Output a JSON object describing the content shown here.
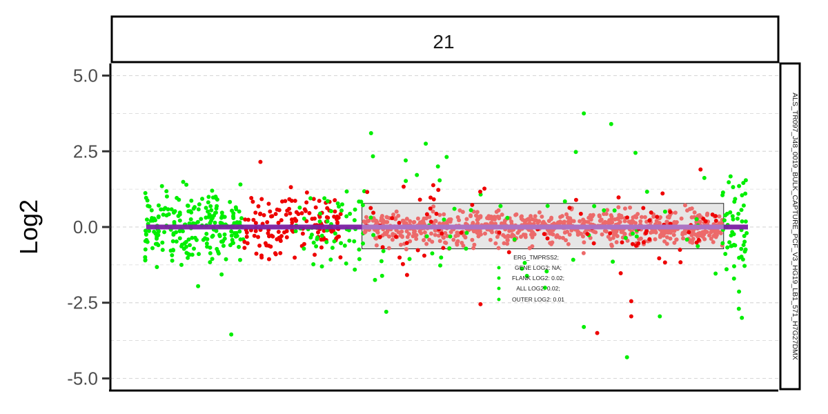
{
  "chart_data": {
    "type": "scatter",
    "title": "",
    "facet_label": "21",
    "sample_label": "ALS_TR097_J48_0019_BULK_CAPTURE_PCF_V3_HG19_LB1_571_H7G27DMX",
    "xlabel": "",
    "ylabel": "Log2",
    "ylim": [
      -5.4,
      5.4
    ],
    "yticks": [
      5.0,
      2.5,
      0.0,
      -2.5,
      -5.0
    ],
    "ytick_labels": [
      "5.0",
      "2.5",
      "0.0",
      "-2.5",
      "-5.0"
    ],
    "xlim": [
      0,
      1000
    ],
    "grid": true,
    "segment": {
      "label": "segment mean",
      "x_start": 10,
      "x_end": 1000,
      "y": 0.0,
      "color": "#7b1fa2"
    },
    "highlight_region": {
      "x_start": 365,
      "x_end": 960,
      "y_min": -0.72,
      "y_max": 0.78
    },
    "annotation": {
      "gene": "ERG_TMPRSS2;",
      "lines": [
        "GENE LOG2: NA;",
        "FLANK LOG2: 0.02;",
        "ALL LOG2: 0.02;",
        "OUTER LOG2: 0.01"
      ]
    },
    "colors": {
      "green": "#00ee00",
      "red": "#ee0000",
      "region_points": "#ec6a6a",
      "region_fill": "#e6e6e6"
    },
    "series": [
      {
        "name": "green-left",
        "color": "green",
        "x_range": [
          8,
          170
        ],
        "sd": 0.85,
        "count": 230
      },
      {
        "name": "red-left",
        "color": "red",
        "x_range": [
          170,
          330
        ],
        "sd": 0.75,
        "count": 150
      },
      {
        "name": "green-mid",
        "color": "green",
        "x_range": [
          250,
          370
        ],
        "sd": 0.85,
        "count": 60
      },
      {
        "name": "region",
        "color": "region_points",
        "x_range": [
          368,
          958
        ],
        "sd": 0.36,
        "count": 760
      },
      {
        "name": "green-scatter",
        "color": "green",
        "x_range": [
          370,
          960
        ],
        "sd": 1.4,
        "count": 55
      },
      {
        "name": "red-scatter",
        "color": "red",
        "x_range": [
          370,
          960
        ],
        "sd": 0.95,
        "count": 80
      },
      {
        "name": "green-right",
        "color": "green",
        "x_range": [
          958,
          1000
        ],
        "sd": 1.25,
        "count": 55
      }
    ],
    "outliers": [
      {
        "x": 380,
        "y": 3.1,
        "color": "green"
      },
      {
        "x": 470,
        "y": 2.75,
        "color": "green"
      },
      {
        "x": 490,
        "y": 2.0,
        "color": "green"
      },
      {
        "x": 437,
        "y": 2.2,
        "color": "green"
      },
      {
        "x": 730,
        "y": 3.75,
        "color": "green"
      },
      {
        "x": 775,
        "y": 3.4,
        "color": "green"
      },
      {
        "x": 815,
        "y": 2.45,
        "color": "green"
      },
      {
        "x": 855,
        "y": -2.95,
        "color": "green"
      },
      {
        "x": 752,
        "y": -3.5,
        "color": "red"
      },
      {
        "x": 150,
        "y": -3.55,
        "color": "green"
      },
      {
        "x": 801,
        "y": -4.3,
        "color": "green"
      },
      {
        "x": 730,
        "y": -3.3,
        "color": "green"
      },
      {
        "x": 808,
        "y": -2.95,
        "color": "red"
      },
      {
        "x": 808,
        "y": -2.45,
        "color": "red"
      },
      {
        "x": 990,
        "y": -3.0,
        "color": "green"
      },
      {
        "x": 985,
        "y": -2.7,
        "color": "green"
      },
      {
        "x": 198,
        "y": 2.15,
        "color": "red"
      },
      {
        "x": 560,
        "y": -2.55,
        "color": "red"
      },
      {
        "x": 405,
        "y": -2.8,
        "color": "green"
      },
      {
        "x": 922,
        "y": 1.9,
        "color": "red"
      }
    ]
  }
}
